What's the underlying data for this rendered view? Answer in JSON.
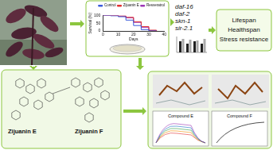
{
  "chart_data": {
    "type": "line",
    "x_label": "Days",
    "y_label": "Survival (%)",
    "x": [
      0,
      5,
      10,
      15,
      20,
      25,
      30,
      35
    ],
    "series": [
      {
        "name": "Control",
        "color": "#3b5bdb",
        "values": [
          100,
          98,
          92,
          70,
          35,
          8,
          0,
          0
        ]
      },
      {
        "name": "Zijuanin E",
        "color": "#e03131",
        "values": [
          100,
          100,
          97,
          88,
          60,
          28,
          5,
          0
        ]
      },
      {
        "name": "Resveratrol",
        "color": "#9c36b5",
        "values": [
          100,
          100,
          96,
          85,
          55,
          22,
          3,
          0
        ]
      }
    ],
    "xlim": [
      0,
      40
    ],
    "xticks": [
      0,
      10,
      20,
      30,
      40
    ],
    "ylim": [
      0,
      100
    ],
    "yticks": [
      0,
      50,
      100
    ],
    "legend": "upper right",
    "grid": false
  },
  "diagram": {
    "compounds": [
      "Zijuanin E",
      "Zijuanin F"
    ],
    "genes": [
      "daf-16",
      "daf-2",
      "skn-1",
      "sir-2.1"
    ],
    "outcomes": [
      "Lifespan",
      "Healthspan",
      "Stress resistance"
    ],
    "binding_labels": [
      "Compound E",
      "Compound F"
    ]
  }
}
